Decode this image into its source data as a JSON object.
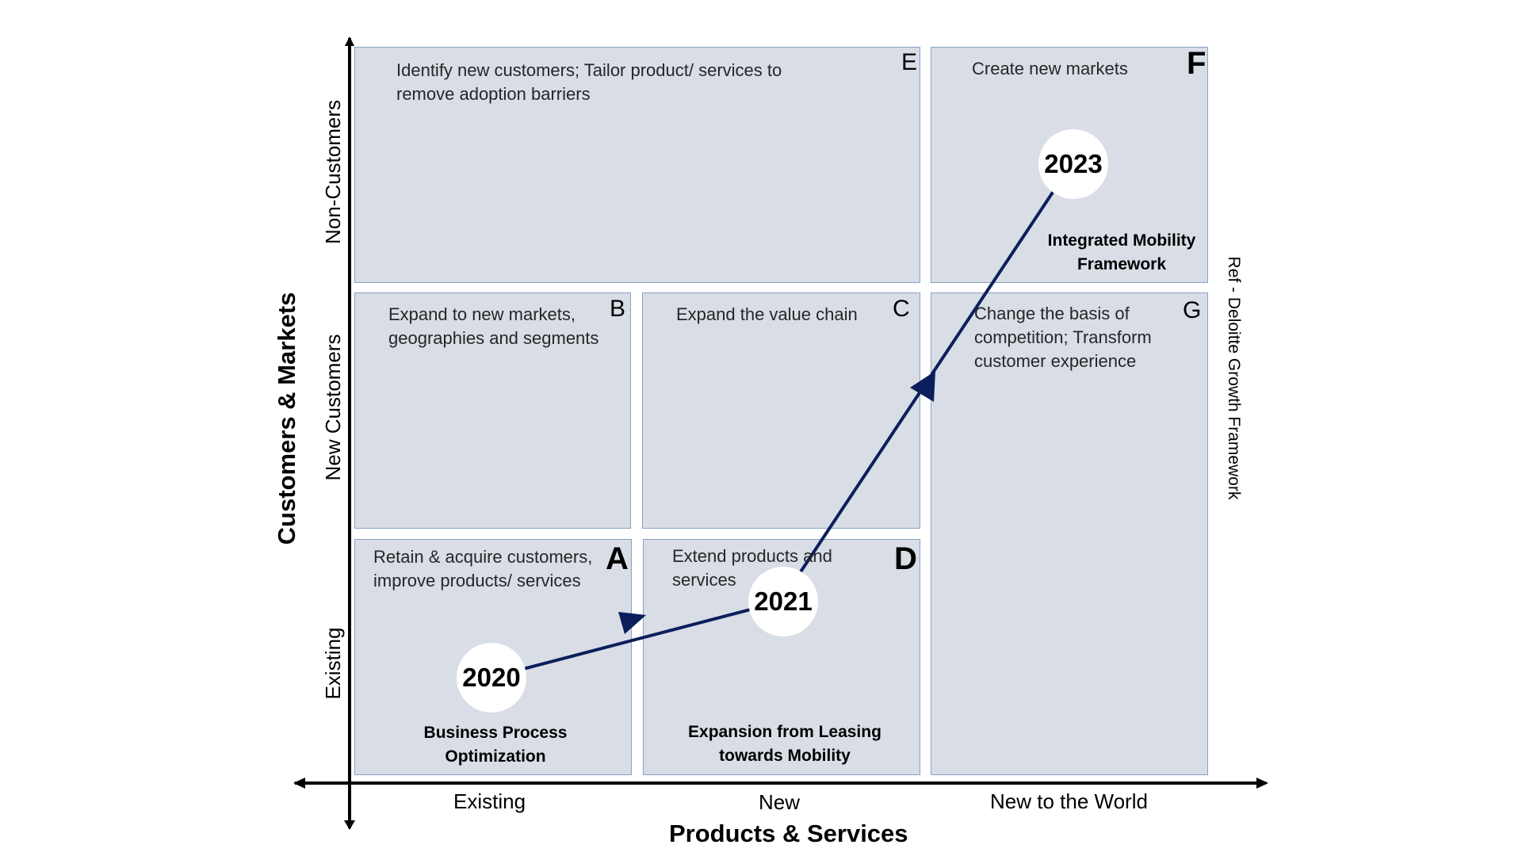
{
  "cells": {
    "A": {
      "letter": "A",
      "text": "Retain & acquire customers, improve products/ services",
      "caption": "Business Process Optimization"
    },
    "B": {
      "letter": "B",
      "text": "Expand to new markets, geographies and segments"
    },
    "C": {
      "letter": "C",
      "text": "Expand the value chain"
    },
    "D": {
      "letter": "D",
      "text": "Extend products and services",
      "caption": "Expansion from Leasing towards Mobility"
    },
    "E": {
      "letter": "E",
      "text": "Identify new customers; Tailor product/ services to remove adoption barriers"
    },
    "F": {
      "letter": "F",
      "text": "Create new markets",
      "caption": "Integrated Mobility Framework"
    },
    "G": {
      "letter": "G",
      "text": "Change the basis of competition; Transform customer experience"
    }
  },
  "milestones": {
    "y2020": "2020",
    "y2021": "2021",
    "y2023": "2023"
  },
  "x_axis": {
    "title": "Products & Services",
    "ticks": [
      "Existing",
      "New",
      "New to the World"
    ]
  },
  "y_axis": {
    "title": "Customers & Markets",
    "ticks": [
      "Existing",
      "New Customers",
      "Non-Customers"
    ]
  },
  "reference": "Ref - Deloitte Growth Framework",
  "colors": {
    "cell_fill": "#d9dde6",
    "cell_border": "#8aa0c4",
    "path": "#0b1f5c",
    "axis": "#000000",
    "circle": "#ffffff"
  }
}
